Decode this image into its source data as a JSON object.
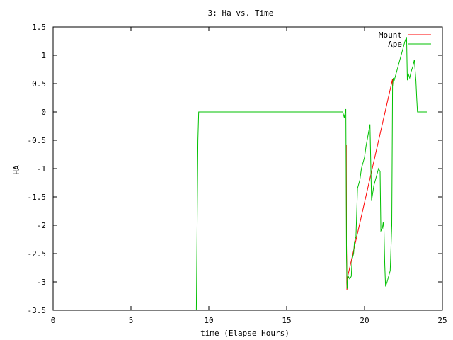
{
  "chart_data": {
    "type": "line",
    "title": "3: Ha vs. Time",
    "xlabel": "time (Elapse Hours)",
    "ylabel": "HA",
    "xlim": [
      0,
      25
    ],
    "ylim": [
      -3.5,
      1.5
    ],
    "xticks": [
      0,
      5,
      10,
      15,
      20,
      25
    ],
    "xtick_labels": [
      "0",
      "5",
      "10",
      "15",
      "20",
      "25"
    ],
    "yticks": [
      -3.5,
      -3,
      -2.5,
      -2,
      -1.5,
      -1,
      -0.5,
      0,
      0.5,
      1,
      1.5
    ],
    "ytick_labels": [
      "-3.5",
      "-3",
      "-2.5",
      "-2",
      "-1.5",
      "-1",
      "-0.5",
      "0",
      "0.5",
      "1",
      "1.5"
    ],
    "grid": false,
    "legend_position": "top-right",
    "series": [
      {
        "name": "Mount",
        "color": "#ff0000",
        "x": [
          18.83,
          18.83,
          18.84,
          18.84,
          18.86,
          18.86,
          18.87,
          18.87,
          18.88,
          18.88,
          21.8,
          21.8
        ],
        "y": [
          -0.58,
          -0.73,
          -1.92,
          -2.35,
          -2.7,
          -3.02,
          -3.08,
          -3.15,
          -3.08,
          -2.95,
          0.58,
          0.45
        ]
      },
      {
        "name": "Ape",
        "color": "#00c000",
        "x": [
          9.2,
          9.25,
          9.3,
          9.35,
          18.55,
          18.6,
          18.7,
          18.8,
          18.84,
          18.88,
          18.95,
          19.05,
          19.15,
          19.2,
          19.3,
          19.35,
          19.45,
          19.55,
          19.6,
          19.7,
          19.8,
          19.9,
          20.0,
          20.1,
          20.2,
          20.3,
          20.35,
          20.45,
          20.6,
          20.7,
          20.8,
          20.9,
          21.0,
          21.05,
          21.15,
          21.2,
          21.25,
          21.3,
          21.35,
          21.45,
          21.55,
          21.65,
          21.75,
          21.8,
          21.85,
          21.9,
          22.0,
          22.1,
          22.2,
          22.3,
          22.4,
          22.5,
          22.6,
          22.7,
          22.75,
          22.8,
          22.9,
          23.0,
          23.1,
          23.2,
          23.3,
          23.35,
          23.4,
          23.5,
          23.6,
          23.7,
          23.8,
          23.9,
          24.0
        ],
        "y": [
          -3.5,
          -2.0,
          -0.5,
          0.0,
          0.0,
          0.0,
          -0.1,
          0.05,
          -2.5,
          -3.12,
          -2.9,
          -2.95,
          -2.9,
          -2.6,
          -2.5,
          -2.3,
          -2.2,
          -1.35,
          -1.3,
          -1.2,
          -1.0,
          -0.9,
          -0.8,
          -0.6,
          -0.45,
          -0.3,
          -0.22,
          -1.57,
          -1.3,
          -1.2,
          -1.1,
          -1.0,
          -1.05,
          -2.1,
          -2.05,
          -1.95,
          -2.08,
          -2.7,
          -3.08,
          -3.0,
          -2.9,
          -2.8,
          -2.0,
          0.45,
          0.6,
          0.55,
          0.65,
          0.75,
          0.85,
          0.95,
          1.05,
          1.15,
          1.25,
          1.32,
          0.56,
          0.68,
          0.6,
          0.72,
          0.8,
          0.92,
          0.55,
          0.25,
          0.0,
          0.0,
          0.0,
          0.0,
          0.0,
          0.0,
          0.0
        ]
      }
    ]
  }
}
